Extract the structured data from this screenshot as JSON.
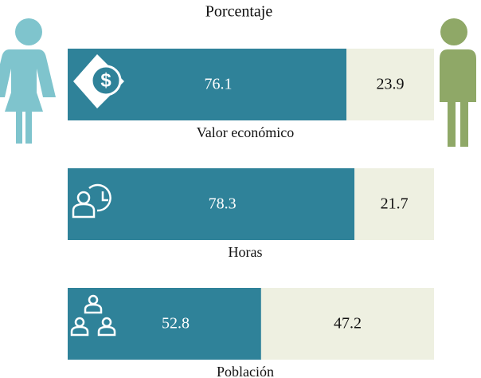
{
  "chart_data": {
    "type": "bar",
    "orientation": "horizontal",
    "stacked": true,
    "subtitle": "Porcentaje",
    "categories": [
      "Valor económico",
      "Horas",
      "Población"
    ],
    "series": [
      {
        "color": "#2f8299",
        "values": [
          76.1,
          78.3,
          52.8
        ]
      },
      {
        "color": "#eef0e1",
        "values": [
          23.9,
          21.7,
          47.2
        ]
      }
    ],
    "xlim": [
      0,
      100
    ]
  }
}
